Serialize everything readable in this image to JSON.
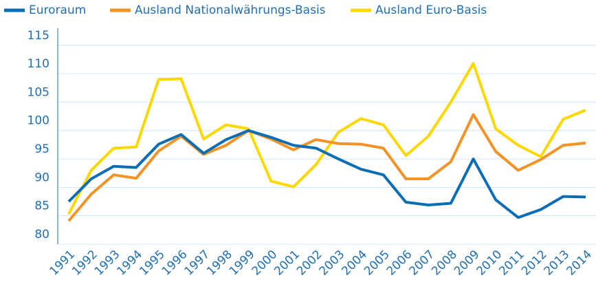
{
  "chart_data": {
    "type": "line",
    "categories": [
      "1991",
      "1992",
      "1993",
      "1994",
      "1995",
      "1996",
      "1997",
      "1998",
      "1999",
      "2000",
      "2001",
      "2002",
      "2003",
      "2004",
      "2005",
      "2006",
      "2007",
      "2008",
      "2009",
      "2010",
      "2011",
      "2012",
      "2013",
      "2014"
    ],
    "series": [
      {
        "name": "Euroraum",
        "color": "#0b6eb5",
        "values": [
          87.5,
          91.5,
          93.7,
          93.5,
          97.6,
          99.3,
          96,
          98.4,
          100,
          98.8,
          97.4,
          96.9,
          95,
          93.2,
          92.2,
          87.4,
          86.9,
          87.2,
          95,
          87.8,
          84.7,
          86.1,
          88.4,
          88.3
        ]
      },
      {
        "name": "Ausland Nationalwährungs-Basis",
        "color": "#f39325",
        "values": [
          84.1,
          88.8,
          92.2,
          91.6,
          96.4,
          99,
          95.8,
          97.4,
          100,
          98.5,
          96.6,
          98.4,
          97.7,
          97.6,
          96.9,
          91.5,
          91.5,
          94.5,
          102.8,
          96.3,
          93,
          94.9,
          97.4,
          97.8
        ]
      },
      {
        "name": "Ausland Euro-Basis",
        "color": "#fcd800",
        "values": [
          85.3,
          93,
          96.9,
          97.1,
          109,
          109.1,
          98.5,
          101,
          100.3,
          91.1,
          90.1,
          94,
          99.7,
          102.1,
          101,
          95.6,
          99,
          105,
          111.8,
          100.3,
          97.4,
          95.4,
          102,
          103.6
        ]
      }
    ],
    "ylim": [
      80,
      118
    ],
    "yticks": [
      80,
      85,
      90,
      95,
      100,
      105,
      110,
      115
    ],
    "grid": true,
    "legend": "top"
  }
}
